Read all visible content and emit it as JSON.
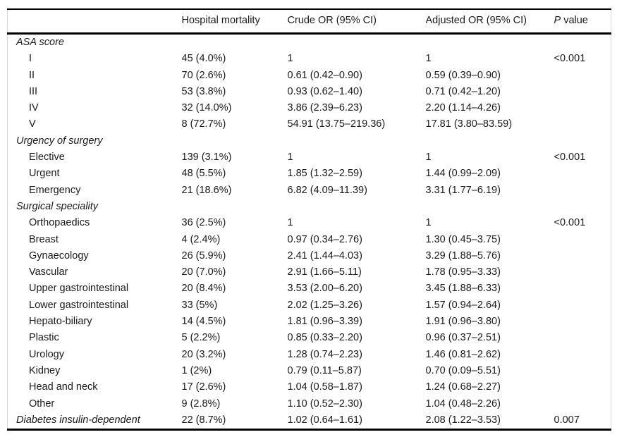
{
  "table": {
    "columns": {
      "label": "",
      "mortality": "Hospital mortality",
      "crude": "Crude OR (95% CI)",
      "adjusted": "Adjusted OR (95% CI)",
      "p_italic": "P",
      "p_rest": " value"
    },
    "sections": [
      {
        "header": "ASA score",
        "rows": [
          {
            "label": "I",
            "mortality": "45 (4.0%)",
            "crude": "1",
            "adjusted": "1",
            "p": "<0.001"
          },
          {
            "label": "II",
            "mortality": "70 (2.6%)",
            "crude": "0.61 (0.42–0.90)",
            "adjusted": "0.59 (0.39–0.90)"
          },
          {
            "label": "III",
            "mortality": "53 (3.8%)",
            "crude": "0.93 (0.62–1.40)",
            "adjusted": "0.71 (0.42–1.20)"
          },
          {
            "label": "IV",
            "mortality": "32 (14.0%)",
            "crude": "3.86 (2.39–6.23)",
            "adjusted": "2.20 (1.14–4.26)"
          },
          {
            "label": "V",
            "mortality": "8 (72.7%)",
            "crude": "54.91 (13.75–219.36)",
            "adjusted": "17.81 (3.80–83.59)"
          }
        ]
      },
      {
        "header": "Urgency of surgery",
        "rows": [
          {
            "label": "Elective",
            "mortality": "139 (3.1%)",
            "crude": "1",
            "adjusted": "1",
            "p": "<0.001"
          },
          {
            "label": "Urgent",
            "mortality": "48 (5.5%)",
            "crude": "1.85 (1.32–2.59)",
            "adjusted": "1.44 (0.99–2.09)"
          },
          {
            "label": "Emergency",
            "mortality": "21 (18.6%)",
            "crude": "6.82 (4.09–11.39)",
            "adjusted": "3.31 (1.77–6.19)"
          }
        ]
      },
      {
        "header": "Surgical speciality",
        "rows": [
          {
            "label": "Orthopaedics",
            "mortality": "36 (2.5%)",
            "crude": "1",
            "adjusted": "1",
            "p": "<0.001"
          },
          {
            "label": "Breast",
            "mortality": "4 (2.4%)",
            "crude": "0.97 (0.34–2.76)",
            "adjusted": "1.30 (0.45–3.75)"
          },
          {
            "label": "Gynaecology",
            "mortality": "26 (5.9%)",
            "crude": "2.41 (1.44–4.03)",
            "adjusted": "3.29 (1.88–5.76)"
          },
          {
            "label": "Vascular",
            "mortality": "20 (7.0%)",
            "crude": "2.91 (1.66–5.11)",
            "adjusted": "1.78 (0.95–3.33)"
          },
          {
            "label": "Upper gastrointestinal",
            "mortality": "20 (8.4%)",
            "crude": "3.53 (2.00–6.20)",
            "adjusted": "3.45 (1.88–6.33)"
          },
          {
            "label": "Lower gastrointestinal",
            "mortality": "33 (5%)",
            "crude": "2.02 (1.25–3.26)",
            "adjusted": "1.57 (0.94–2.64)"
          },
          {
            "label": "Hepato-biliary",
            "mortality": "14 (4.5%)",
            "crude": "1.81 (0.96–3.39)",
            "adjusted": "1.91 (0.96–3.80)"
          },
          {
            "label": "Plastic",
            "mortality": "5 (2.2%)",
            "crude": "0.85 (0.33–2.20)",
            "adjusted": "0.96 (0.37–2.51)"
          },
          {
            "label": "Urology",
            "mortality": "20 (3.2%)",
            "crude": "1.28 (0.74–2.23)",
            "adjusted": "1.46 (0.81–2.62)"
          },
          {
            "label": "Kidney",
            "mortality": "1 (2%)",
            "crude": "0.79 (0.11–5.87)",
            "adjusted": "0.70 (0.09–5.51)"
          },
          {
            "label": "Head and neck",
            "mortality": "17 (2.6%)",
            "crude": "1.04 (0.58–1.87)",
            "adjusted": "1.24 (0.68–2.27)"
          },
          {
            "label": "Other",
            "mortality": "9 (2.8%)",
            "crude": "1.10 (0.52–2.30)",
            "adjusted": "1.04 (0.48–2.26)"
          }
        ]
      },
      {
        "header": "Diabetes insulin-dependent",
        "data": {
          "mortality": "22 (8.7%)",
          "crude": "1.02 (0.64–1.61)",
          "adjusted": "2.08 (1.22–3.53)",
          "p": "0.007"
        },
        "rows": []
      }
    ]
  }
}
